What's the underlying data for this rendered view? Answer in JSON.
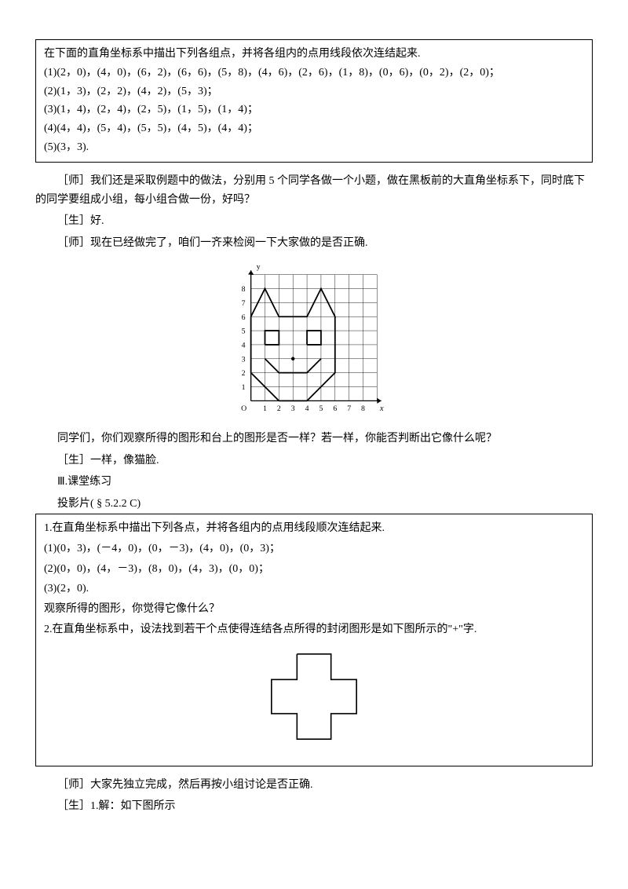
{
  "box1": {
    "intro": "在下面的直角坐标系中描出下列各组点，并将各组内的点用线段依次连结起来.",
    "lines": [
      "(1)(2，0)，(4，0)，(6，2)，(6，6)，(5，8)，(4，6)，(2，6)，(1，8)，(0，6)，(0，2)，(2，0)；",
      "(2)(1，3)，(2，2)，(4，2)，(5，3)；",
      "(3)(1，4)，(2，4)，(2，5)，(1，5)，(1，4)；",
      "(4)(4，4)，(5，4)，(5，5)，(4，5)，(4，4)；",
      "(5)(3，3)."
    ]
  },
  "dialogue1": [
    "［师］我们还是采取例题中的做法，分别用 5 个同学各做一个小题，做在黑板前的大直角坐标系下，同时底下的同学要组成小组，每小组合做一份，好吗？",
    "［生］好.",
    "［师］现在已经做完了，咱们一齐来检阅一下大家做的是否正确."
  ],
  "catChart": {
    "grid": {
      "cols": 9,
      "rows": 9,
      "cell": 20
    },
    "yLabels": [
      "1",
      "2",
      "3",
      "4",
      "5",
      "6",
      "7",
      "8"
    ],
    "xLabels": [
      "1",
      "2",
      "3",
      "4",
      "5",
      "6",
      "7",
      "8"
    ],
    "yLabel": "y",
    "xLabel": "x",
    "originLabel": "O",
    "gridColor": "#000000",
    "bgColor": "#ffffff",
    "lineColor": "#000000",
    "lineWidth": 2,
    "outline": [
      [
        2,
        0
      ],
      [
        4,
        0
      ],
      [
        6,
        2
      ],
      [
        6,
        6
      ],
      [
        5,
        8
      ],
      [
        4,
        6
      ],
      [
        2,
        6
      ],
      [
        1,
        8
      ],
      [
        0,
        6
      ],
      [
        0,
        2
      ],
      [
        2,
        0
      ]
    ],
    "mouth": [
      [
        1,
        3
      ],
      [
        2,
        2
      ],
      [
        4,
        2
      ],
      [
        5,
        3
      ]
    ],
    "eyeL": [
      [
        1,
        4
      ],
      [
        2,
        4
      ],
      [
        2,
        5
      ],
      [
        1,
        5
      ],
      [
        1,
        4
      ]
    ],
    "eyeR": [
      [
        4,
        4
      ],
      [
        5,
        4
      ],
      [
        5,
        5
      ],
      [
        4,
        5
      ],
      [
        4,
        4
      ]
    ],
    "nose": [
      3,
      3
    ]
  },
  "dialogue2": [
    "同学们，你们观察所得的图形和台上的图形是否一样？若一样，你能否判断出它像什么呢？",
    "［生］一样，像猫脸.",
    "Ⅲ.课堂练习",
    "投影片( § 5.2.2 C)"
  ],
  "box2": {
    "q1_intro": "1.在直角坐标系中描出下列各点，并将各组内的点用线段顺次连结起来.",
    "q1_lines": [
      "(1)(0，3)，(－4，0)，(0，－3)，(4，0)，(0，3)；",
      "(2)(0，0)，(4，－3)，(8，0)，(4，3)，(0，0)；",
      "(3)(2，0)."
    ],
    "q1_obs": "观察所得的图形，你觉得它像什么？",
    "q2": "2.在直角坐标系中，设法找到若干个点使得连结各点所得的封闭图形是如下图所示的\"+\"字."
  },
  "cross": {
    "lineColor": "#000000",
    "bgColor": "#ffffff",
    "lineWidth": 1.5,
    "points": [
      [
        40,
        10
      ],
      [
        80,
        10
      ],
      [
        80,
        40
      ],
      [
        110,
        40
      ],
      [
        110,
        80
      ],
      [
        80,
        80
      ],
      [
        80,
        110
      ],
      [
        40,
        110
      ],
      [
        40,
        80
      ],
      [
        10,
        80
      ],
      [
        10,
        40
      ],
      [
        40,
        40
      ],
      [
        40,
        10
      ]
    ]
  },
  "dialogue3": [
    "［师］大家先独立完成，然后再按小组讨论是否正确.",
    "［生］1.解：如下图所示"
  ]
}
